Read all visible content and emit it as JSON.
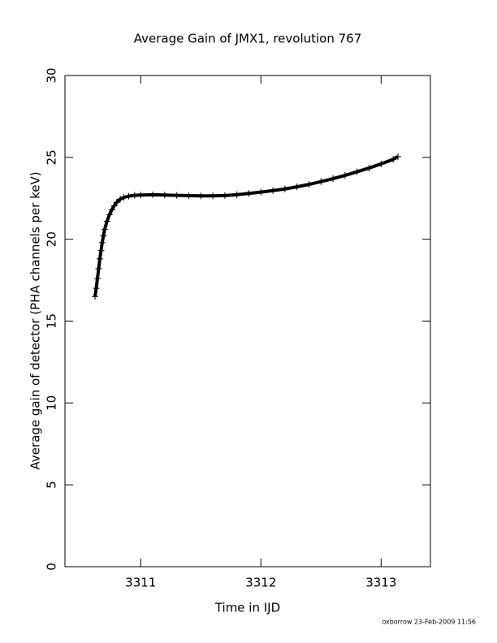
{
  "chart_data": {
    "type": "scatter",
    "title": "Average Gain of JMX1, revolution 767",
    "x_label": "Time in IJD",
    "y_label": "Average gain of detector (PHA channels per keV)",
    "footer": "oxborrow 23-Feb-2009 11:56",
    "xlim": [
      3310.37,
      3313.41
    ],
    "ylim": [
      0,
      30
    ],
    "xticks": [
      3311,
      3312,
      3313
    ],
    "yticks": [
      0,
      5,
      10,
      15,
      20,
      25,
      30
    ],
    "color": "#000000",
    "marker": "plus",
    "x": [
      3310.62,
      3310.63,
      3310.64,
      3310.65,
      3310.66,
      3310.67,
      3310.68,
      3310.69,
      3310.7,
      3310.72,
      3310.74,
      3310.76,
      3310.78,
      3310.8,
      3310.83,
      3310.86,
      3310.9,
      3310.95,
      3311.0,
      3311.1,
      3311.2,
      3311.3,
      3311.4,
      3311.5,
      3311.6,
      3311.7,
      3311.8,
      3311.9,
      3312.0,
      3312.1,
      3312.2,
      3312.3,
      3312.4,
      3312.5,
      3312.6,
      3312.7,
      3312.8,
      3312.9,
      3313.0,
      3313.1,
      3313.14
    ],
    "values": [
      16.5,
      17.0,
      17.6,
      18.2,
      18.8,
      19.3,
      19.8,
      20.2,
      20.6,
      21.1,
      21.5,
      21.8,
      22.05,
      22.25,
      22.45,
      22.55,
      22.63,
      22.68,
      22.7,
      22.72,
      22.7,
      22.68,
      22.66,
      22.65,
      22.65,
      22.67,
      22.72,
      22.8,
      22.88,
      22.97,
      23.07,
      23.2,
      23.35,
      23.52,
      23.7,
      23.9,
      24.12,
      24.35,
      24.6,
      24.88,
      25.05
    ]
  }
}
